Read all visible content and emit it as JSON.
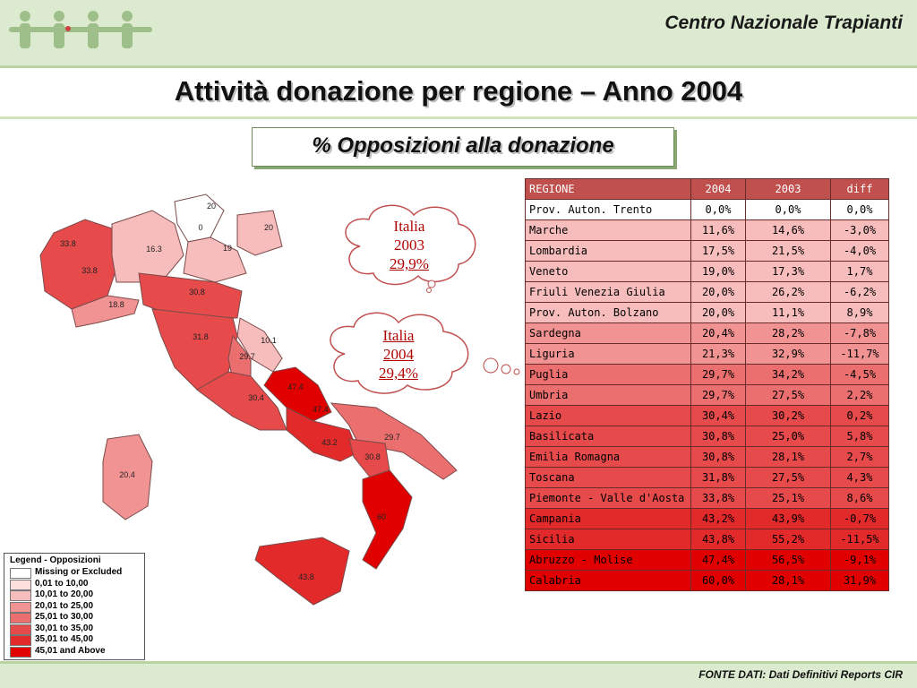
{
  "header": {
    "organization": "Centro Nazionale Trapianti"
  },
  "title": "Attività donazione per regione – Anno 2004",
  "subtitle": "% Opposizioni alla donazione",
  "clouds": {
    "c2003": {
      "line1": "Italia",
      "line2": "2003",
      "line3": "29,9%"
    },
    "c2004": {
      "line1": "Italia",
      "line2": "2004",
      "line3": "29,4%"
    }
  },
  "map_labels": [
    "20",
    "0",
    "20",
    "19",
    "16.3",
    "33.8",
    "33.8",
    "18.8",
    "30.8",
    "10.1",
    "31.8",
    "29.7",
    "47.4",
    "47.4",
    "30.4",
    "29.7",
    "43.2",
    "30.8",
    "60",
    "20.4",
    "43.8"
  ],
  "legend": {
    "title": "Legend - Opposizioni",
    "items": [
      {
        "label": "Missing or Excluded",
        "color": "#ffffff"
      },
      {
        "label": "0,01 to 10,00",
        "color": "#fde0de"
      },
      {
        "label": "10,01 to 20,00",
        "color": "#f7bcbc"
      },
      {
        "label": "20,01 to 25,00",
        "color": "#f29393"
      },
      {
        "label": "25,01 to 30,00",
        "color": "#ec6f6f"
      },
      {
        "label": "30,01 to 35,00",
        "color": "#e64a4a"
      },
      {
        "label": "35,01 to 45,00",
        "color": "#e22a2a"
      },
      {
        "label": "45,01 and Above",
        "color": "#e00000"
      }
    ]
  },
  "table": {
    "headers": [
      "REGIONE",
      "2004",
      "2003",
      "diff"
    ],
    "rows": [
      {
        "region": "Prov. Auton. Trento",
        "v2004": "0,0%",
        "v2003": "0,0%",
        "diff": "0,0%",
        "color": "#ffffff"
      },
      {
        "region": "Marche",
        "v2004": "11,6%",
        "v2003": "14,6%",
        "diff": "-3,0%",
        "color": "#f7bcbc"
      },
      {
        "region": "Lombardia",
        "v2004": "17,5%",
        "v2003": "21,5%",
        "diff": "-4,0%",
        "color": "#f7bcbc"
      },
      {
        "region": "Veneto",
        "v2004": "19,0%",
        "v2003": "17,3%",
        "diff": "1,7%",
        "color": "#f7bcbc"
      },
      {
        "region": "Friuli Venezia Giulia",
        "v2004": "20,0%",
        "v2003": "26,2%",
        "diff": "-6,2%",
        "color": "#f7bcbc"
      },
      {
        "region": "Prov. Auton. Bolzano",
        "v2004": "20,0%",
        "v2003": "11,1%",
        "diff": "8,9%",
        "color": "#f7bcbc"
      },
      {
        "region": "Sardegna",
        "v2004": "20,4%",
        "v2003": "28,2%",
        "diff": "-7,8%",
        "color": "#f29393"
      },
      {
        "region": "Liguria",
        "v2004": "21,3%",
        "v2003": "32,9%",
        "diff": "-11,7%",
        "color": "#f29393"
      },
      {
        "region": "Puglia",
        "v2004": "29,7%",
        "v2003": "34,2%",
        "diff": "-4,5%",
        "color": "#ec6f6f"
      },
      {
        "region": "Umbria",
        "v2004": "29,7%",
        "v2003": "27,5%",
        "diff": "2,2%",
        "color": "#ec6f6f"
      },
      {
        "region": "Lazio",
        "v2004": "30,4%",
        "v2003": "30,2%",
        "diff": "0,2%",
        "color": "#e64a4a"
      },
      {
        "region": "Basilicata",
        "v2004": "30,8%",
        "v2003": "25,0%",
        "diff": "5,8%",
        "color": "#e64a4a"
      },
      {
        "region": "Emilia Romagna",
        "v2004": "30,8%",
        "v2003": "28,1%",
        "diff": "2,7%",
        "color": "#e64a4a"
      },
      {
        "region": "Toscana",
        "v2004": "31,8%",
        "v2003": "27,5%",
        "diff": "4,3%",
        "color": "#e64a4a"
      },
      {
        "region": "Piemonte - Valle d'Aosta",
        "v2004": "33,8%",
        "v2003": "25,1%",
        "diff": "8,6%",
        "color": "#e64a4a"
      },
      {
        "region": "Campania",
        "v2004": "43,2%",
        "v2003": "43,9%",
        "diff": "-0,7%",
        "color": "#e22a2a"
      },
      {
        "region": "Sicilia",
        "v2004": "43,8%",
        "v2003": "55,2%",
        "diff": "-11,5%",
        "color": "#e22a2a"
      },
      {
        "region": "Abruzzo - Molise",
        "v2004": "47,4%",
        "v2003": "56,5%",
        "diff": "-9,1%",
        "color": "#e00000"
      },
      {
        "region": "Calabria",
        "v2004": "60,0%",
        "v2003": "28,1%",
        "diff": "31,9%",
        "color": "#e00000"
      }
    ]
  },
  "footer": "FONTE DATI: Dati Definitivi Reports CIR"
}
